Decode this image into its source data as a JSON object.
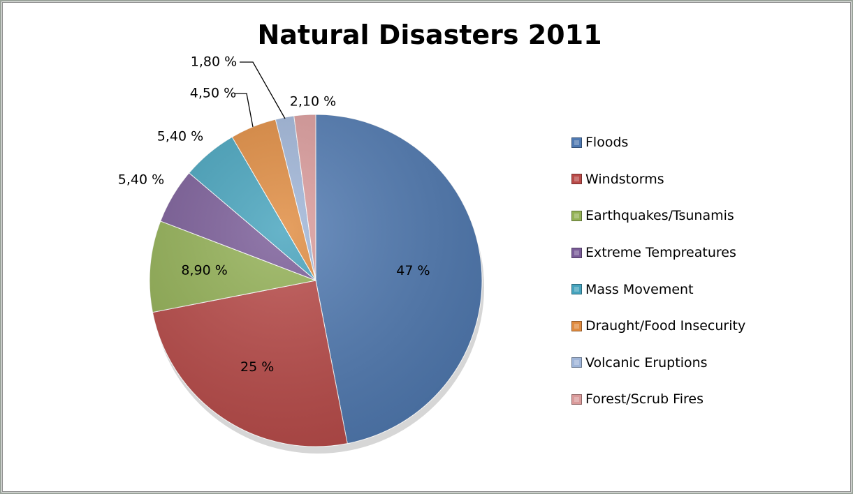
{
  "chart_data": {
    "type": "pie",
    "title": "Natural Disasters 2011",
    "categories": [
      "Floods",
      "Windstorms",
      "Earthquakes/Tsunamis",
      "Extreme Tempreatures",
      "Mass Movement",
      "Draught/Food Insecurity",
      "Volcanic Eruptions",
      "Forest/Scrub Fires"
    ],
    "values": [
      47,
      25,
      8.9,
      5.4,
      5.4,
      4.5,
      1.8,
      2.1
    ],
    "data_labels": [
      "47 %",
      "25 %",
      "8,90 %",
      "5,40 %",
      "5,40 %",
      "4,50 %",
      "1,80 %",
      "2,10 %"
    ],
    "colors": [
      "#4f79b1",
      "#b94a48",
      "#93b155",
      "#7a5c98",
      "#45a3bd",
      "#e08b3f",
      "#9fb5d8",
      "#da9a9a"
    ],
    "legend_position": "right"
  }
}
